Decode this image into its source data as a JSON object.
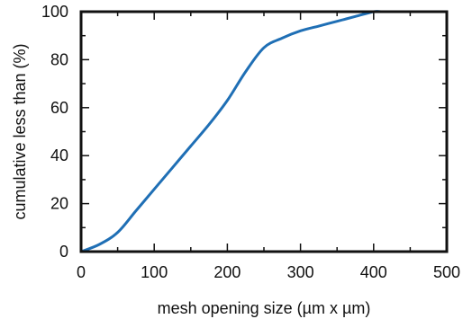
{
  "chart_data": {
    "type": "line",
    "xlabel": "mesh opening size (µm x µm)",
    "ylabel": "cumulative less than (%)",
    "xlim": [
      0,
      500
    ],
    "ylim": [
      0,
      100
    ],
    "xticks": [
      0,
      100,
      200,
      300,
      400,
      500
    ],
    "yticks": [
      0,
      20,
      40,
      60,
      80,
      100
    ],
    "xtick_labels": [
      "0",
      "100",
      "200",
      "300",
      "400",
      "500"
    ],
    "ytick_labels": [
      "0",
      "20",
      "40",
      "60",
      "80",
      "100"
    ],
    "grid": false,
    "series": [
      {
        "color": "#1f6fb5",
        "x": [
          0,
          25,
          50,
          75,
          100,
          125,
          150,
          175,
          200,
          225,
          250,
          275,
          300,
          325,
          350,
          375,
          400,
          410
        ],
        "y": [
          0,
          3,
          8,
          17,
          26,
          35,
          44,
          53,
          63,
          75,
          85,
          89,
          92,
          94,
          96,
          98,
          100,
          100
        ]
      }
    ]
  }
}
